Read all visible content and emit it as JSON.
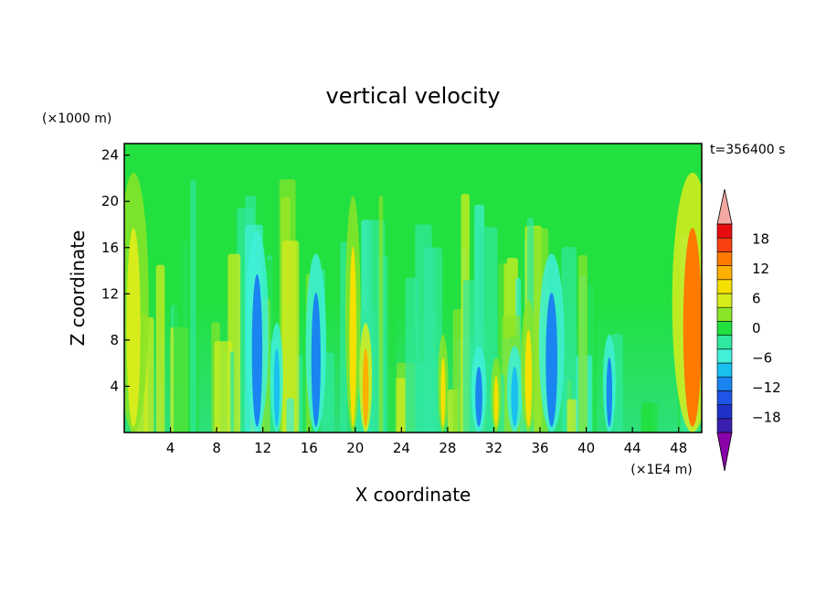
{
  "chart_data": {
    "type": "heatmap",
    "title": "vertical velocity",
    "xlabel": "X coordinate",
    "ylabel": "Z coordinate",
    "x_unit": "(×1E4 m)",
    "y_unit": "(×1000 m)",
    "time_label": "t=356400 s",
    "xlim": [
      0,
      50
    ],
    "ylim": [
      0,
      25
    ],
    "x_ticks": [
      4,
      8,
      12,
      16,
      20,
      24,
      28,
      32,
      36,
      40,
      44,
      48
    ],
    "y_ticks": [
      4,
      8,
      12,
      16,
      20,
      24
    ],
    "colorbar": {
      "levels": [
        -21,
        -18,
        -15,
        -12,
        -9,
        -6,
        -3,
        0,
        3,
        6,
        9,
        12,
        15,
        18,
        21
      ],
      "tick_values": [
        -18,
        -12,
        -6,
        0,
        6,
        12,
        18
      ],
      "tick_labels": [
        "−18",
        "−12",
        "−6",
        "0",
        "6",
        "12",
        "18"
      ],
      "colors": [
        "#3a1fb0",
        "#1e32c8",
        "#1f55e6",
        "#1a84f0",
        "#19c0f0",
        "#40f0d8",
        "#30e8a0",
        "#22e040",
        "#8ae428",
        "#d8ec1c",
        "#f6e000",
        "#ffb000",
        "#ff7a00",
        "#f84010",
        "#e80c10"
      ],
      "under_color": "#8a00a8",
      "over_color": "#f4a8a4"
    },
    "features": [
      {
        "x": 0.8,
        "z_top": 22,
        "w": 1.2,
        "value": 6
      },
      {
        "x": 11.5,
        "z_top": 17,
        "w": 0.9,
        "value": -12
      },
      {
        "x": 13.2,
        "z_top": 9,
        "w": 0.5,
        "value": -9
      },
      {
        "x": 16.6,
        "z_top": 15,
        "w": 0.8,
        "value": -12
      },
      {
        "x": 19.8,
        "z_top": 20,
        "w": 0.6,
        "value": 9
      },
      {
        "x": 20.9,
        "z_top": 9,
        "w": 0.5,
        "value": 12
      },
      {
        "x": 27.6,
        "z_top": 8,
        "w": 0.4,
        "value": 9
      },
      {
        "x": 30.7,
        "z_top": 7,
        "w": 0.6,
        "value": -12
      },
      {
        "x": 32.2,
        "z_top": 6,
        "w": 0.4,
        "value": 9
      },
      {
        "x": 33.8,
        "z_top": 7,
        "w": 0.6,
        "value": -9
      },
      {
        "x": 35.0,
        "z_top": 11,
        "w": 0.6,
        "value": 9
      },
      {
        "x": 37.0,
        "z_top": 15,
        "w": 1.0,
        "value": -12
      },
      {
        "x": 42.0,
        "z_top": 8,
        "w": 0.5,
        "value": -12
      },
      {
        "x": 49.2,
        "z_top": 22,
        "w": 1.6,
        "value": 15
      }
    ]
  }
}
